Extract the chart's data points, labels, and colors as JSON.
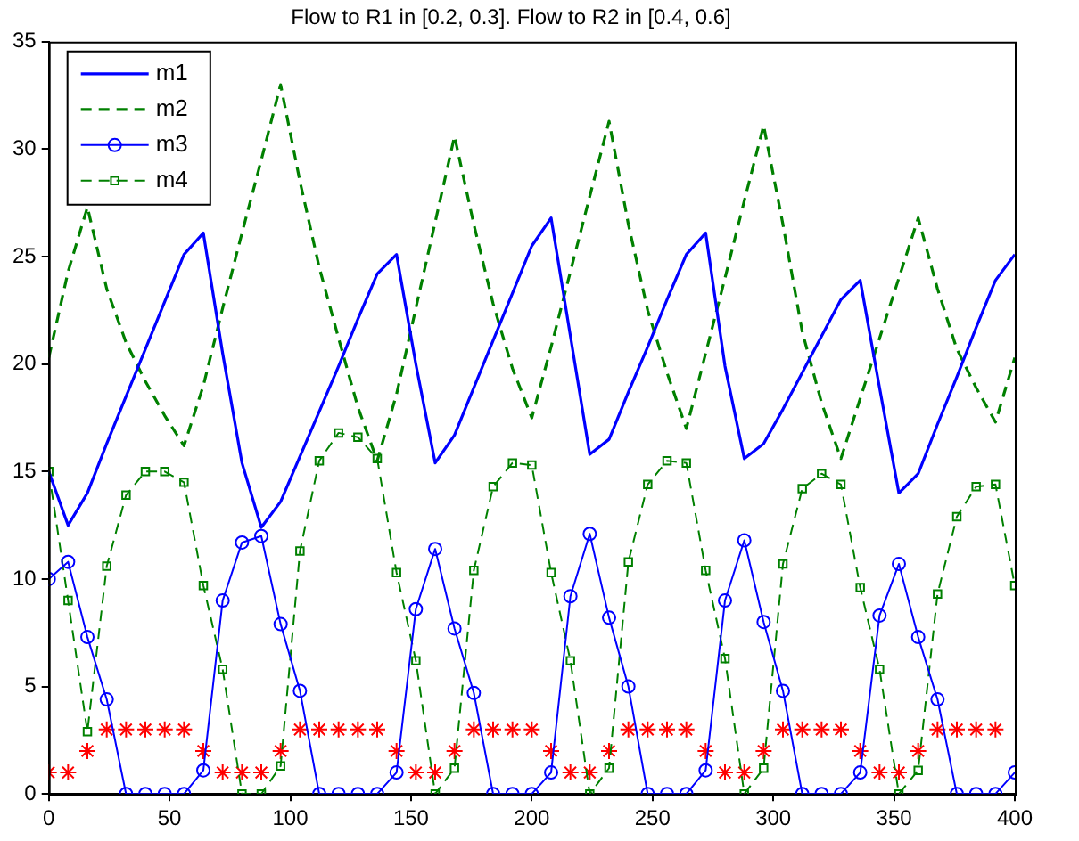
{
  "chart_data": {
    "type": "line",
    "title": "Flow to R1 in [0.2, 0.3]. Flow to R2 in [0.4, 0.6]",
    "x": [
      0,
      8,
      16,
      24,
      32,
      40,
      48,
      56,
      64,
      72,
      80,
      88,
      96,
      104,
      112,
      120,
      128,
      136,
      144,
      152,
      160,
      168,
      176,
      184,
      192,
      200,
      208,
      216,
      224,
      232,
      240,
      248,
      256,
      264,
      272,
      280,
      288,
      296,
      304,
      312,
      320,
      328,
      336,
      344,
      352,
      360,
      368,
      376,
      384,
      392,
      400
    ],
    "series": [
      {
        "name": "m1",
        "color": "#0000ff",
        "marker": "none",
        "line_style": "solid",
        "values": [
          15,
          12.5,
          14.0,
          16.3,
          18.5,
          20.7,
          22.9,
          25.1,
          26.1,
          20.5,
          15.4,
          12.4,
          13.6,
          15.7,
          17.8,
          19.9,
          22.1,
          24.2,
          25.1,
          20.0,
          15.4,
          16.7,
          18.9,
          21.1,
          23.3,
          25.5,
          26.8,
          21.3,
          15.8,
          16.5,
          18.7,
          20.8,
          23.0,
          25.1,
          26.1,
          19.9,
          15.6,
          16.3,
          17.9,
          19.6,
          21.3,
          23.0,
          23.9,
          18.9,
          14.0,
          14.9,
          17.2,
          19.4,
          21.7,
          23.9,
          25.1
        ]
      },
      {
        "name": "m2",
        "color": "#008000",
        "marker": "none",
        "line_style": "dashed",
        "values": [
          20.3,
          24.3,
          27.3,
          23.5,
          21.0,
          19.2,
          17.6,
          16.2,
          19.0,
          22.6,
          26.1,
          29.5,
          33.0,
          28.5,
          24.5,
          21.2,
          18.0,
          15.5,
          18.6,
          22.6,
          26.6,
          30.6,
          26.5,
          22.8,
          19.8,
          17.5,
          20.8,
          24.3,
          27.8,
          31.3,
          26.5,
          22.5,
          19.6,
          17.0,
          20.5,
          24.0,
          27.6,
          31.1,
          26.5,
          21.5,
          18.2,
          15.6,
          18.4,
          21.2,
          24.0,
          26.8,
          23.5,
          20.7,
          18.9,
          17.3,
          20.3
        ]
      },
      {
        "name": "m3",
        "color": "#0000ff",
        "marker": "circle",
        "line_style": "solid",
        "values": [
          10.0,
          10.8,
          7.3,
          4.4,
          0,
          0,
          0,
          0,
          1.1,
          9.0,
          11.7,
          12.0,
          7.9,
          4.8,
          0,
          0,
          0,
          0,
          1.0,
          8.6,
          11.4,
          7.7,
          4.7,
          0,
          0,
          0,
          1.0,
          9.2,
          12.1,
          8.2,
          5.0,
          0,
          0,
          0,
          1.1,
          9.0,
          11.8,
          8.0,
          4.8,
          0,
          0,
          0,
          1.0,
          8.3,
          10.7,
          7.3,
          4.4,
          0,
          0,
          0,
          1.0
        ]
      },
      {
        "name": "m4",
        "color": "#008000",
        "marker": "square",
        "line_style": "dashed",
        "values": [
          15.0,
          9.0,
          2.9,
          10.6,
          13.9,
          15.0,
          15.0,
          14.5,
          9.7,
          5.8,
          0,
          0,
          1.3,
          11.3,
          15.5,
          16.8,
          16.6,
          15.6,
          10.3,
          6.2,
          0,
          1.2,
          10.4,
          14.3,
          15.4,
          15.3,
          10.3,
          6.2,
          0,
          1.2,
          10.8,
          14.4,
          15.5,
          15.4,
          10.4,
          6.3,
          0,
          1.2,
          10.7,
          14.2,
          14.9,
          14.4,
          9.6,
          5.8,
          0,
          1.1,
          9.3,
          12.9,
          14.3,
          14.4,
          9.7
        ]
      },
      {
        "type": "scatter",
        "color": "#ff0000",
        "marker": "cross",
        "values": [
          1,
          1,
          2,
          3,
          3,
          3,
          3,
          3,
          2,
          1,
          1,
          1,
          2,
          3,
          3,
          3,
          3,
          3,
          2,
          1,
          1,
          2,
          3,
          3,
          3,
          3,
          2,
          1,
          1,
          2,
          3,
          3,
          3,
          3,
          2,
          1,
          1,
          2,
          3,
          3,
          3,
          3,
          2,
          1,
          1,
          2,
          3,
          3,
          3,
          3,
          null
        ]
      }
    ],
    "xlim": [
      0,
      400
    ],
    "xticks": [
      0,
      50,
      100,
      150,
      200,
      250,
      300,
      350,
      400
    ],
    "ylim": [
      0,
      35
    ],
    "yticks": [
      0,
      5,
      10,
      15,
      20,
      25,
      30,
      35
    ],
    "legend": "top left"
  }
}
